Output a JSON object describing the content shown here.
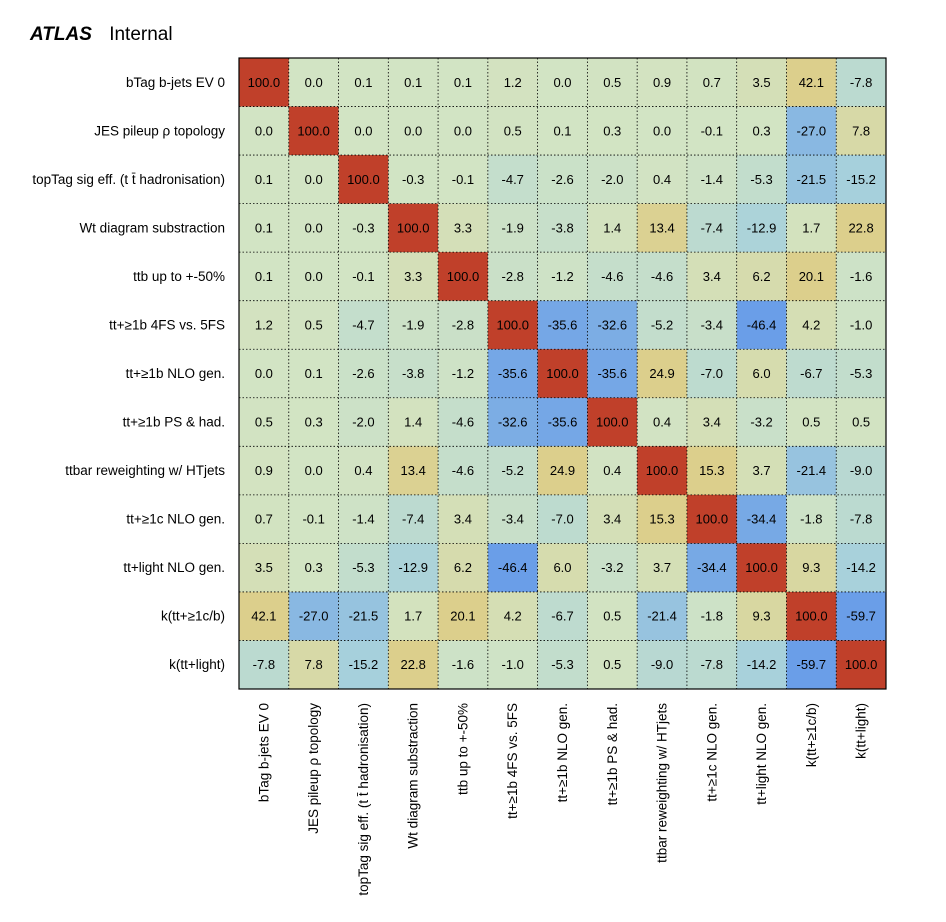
{
  "header": {
    "experiment": "ATLAS",
    "status": "Internal"
  },
  "chart_data": {
    "type": "heatmap",
    "title": "",
    "xlabel": "",
    "ylabel": "",
    "value_range": [
      -100,
      100
    ],
    "grid": true,
    "colors": {
      "strong_positive": "#c0402a",
      "positive": "#dccf8c",
      "neutral": "#d2e4c4",
      "negative": "#a6d0dc",
      "strong_negative": "#6a9ee8"
    },
    "labels": [
      "bTag b-jets EV 0",
      "JES pileup   ρ topology",
      "topTag sig eff. (t t̄ hadronisation)",
      "Wt diagram substraction",
      "ttb up to +-50%",
      "tt+≥1b 4FS vs. 5FS",
      "tt+≥1b NLO gen.",
      "tt+≥1b PS & had.",
      "ttbar reweighting w/ HTjets",
      "tt+≥1c NLO gen.",
      "tt+light NLO gen.",
      "k(tt+≥1c/b)",
      "k(tt+light)"
    ],
    "matrix": [
      [
        100.0,
        0.0,
        0.1,
        0.1,
        0.1,
        1.2,
        -0.0,
        0.5,
        0.9,
        0.7,
        3.5,
        42.1,
        -7.8
      ],
      [
        0.0,
        100.0,
        0.0,
        -0.0,
        0.0,
        0.5,
        0.1,
        0.3,
        0.0,
        -0.1,
        0.3,
        -27.0,
        7.8
      ],
      [
        0.1,
        0.0,
        100.0,
        -0.3,
        -0.1,
        -4.7,
        -2.6,
        -2.0,
        0.4,
        -1.4,
        -5.3,
        -21.5,
        -15.2
      ],
      [
        0.1,
        -0.0,
        -0.3,
        100.0,
        3.3,
        -1.9,
        -3.8,
        1.4,
        13.4,
        -7.4,
        -12.9,
        1.7,
        22.8
      ],
      [
        0.1,
        0.0,
        -0.1,
        3.3,
        100.0,
        -2.8,
        -1.2,
        -4.6,
        -4.6,
        3.4,
        6.2,
        20.1,
        -1.6
      ],
      [
        1.2,
        0.5,
        -4.7,
        -1.9,
        -2.8,
        100.0,
        -35.6,
        -32.6,
        -5.2,
        -3.4,
        -46.4,
        4.2,
        -1.0
      ],
      [
        -0.0,
        0.1,
        -2.6,
        -3.8,
        -1.2,
        -35.6,
        100.0,
        -35.6,
        24.9,
        -7.0,
        6.0,
        -6.7,
        -5.3
      ],
      [
        0.5,
        0.3,
        -2.0,
        1.4,
        -4.6,
        -32.6,
        -35.6,
        100.0,
        0.4,
        3.4,
        -3.2,
        0.5,
        0.5
      ],
      [
        0.9,
        0.0,
        0.4,
        13.4,
        -4.6,
        -5.2,
        24.9,
        0.4,
        100.0,
        15.3,
        3.7,
        -21.4,
        -9.0
      ],
      [
        0.7,
        -0.1,
        -1.4,
        -7.4,
        3.4,
        -3.4,
        -7.0,
        3.4,
        15.3,
        100.0,
        -34.4,
        -1.8,
        -7.8
      ],
      [
        3.5,
        0.3,
        -5.3,
        -12.9,
        6.2,
        -46.4,
        6.0,
        -3.2,
        3.7,
        -34.4,
        100.0,
        9.3,
        -14.2
      ],
      [
        42.1,
        -27.0,
        -21.5,
        1.7,
        20.1,
        4.2,
        -6.7,
        0.5,
        -21.4,
        -1.8,
        9.3,
        100.0,
        -59.7
      ],
      [
        -7.8,
        7.8,
        -15.2,
        22.8,
        -1.6,
        -1.0,
        -5.3,
        0.5,
        -9.0,
        -7.8,
        -14.2,
        -59.7,
        100.0
      ]
    ]
  }
}
